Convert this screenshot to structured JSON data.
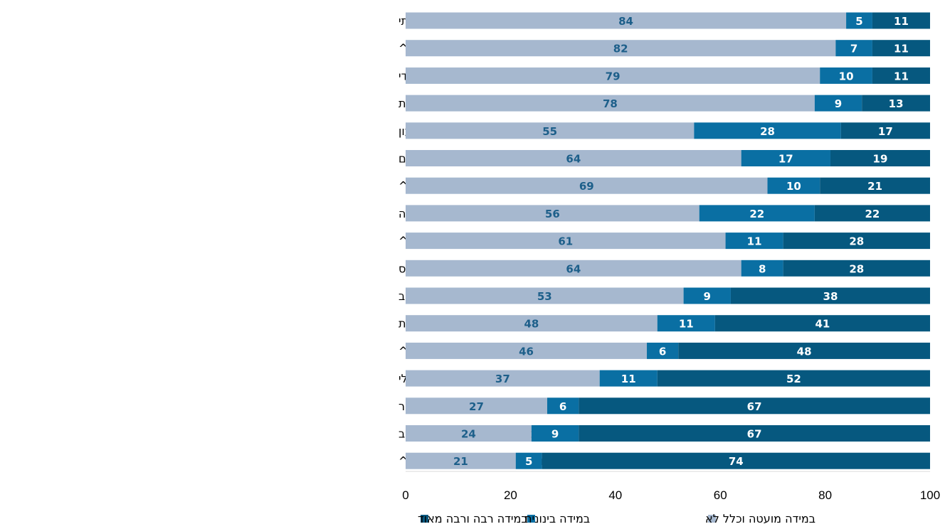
{
  "chart_data": {
    "type": "bar",
    "orientation": "horizontal",
    "stacked": true,
    "categories": [
      "קשה לי למצוא עבודה כי הלבוש שלי מסורתי",
      "האוטובוס ביישוב שלי פועל בשעות שלא מתאימות לעבודה^^",
      "אין לי אמון במעסיק יהודי",
      "קשה לי למצוא עבודה כי אני בדואית",
      "אני לא סומכת על הטיפול שהילדים מקבלים במעון",
      "קשה לי למצוא עבודה שמתאימה לנשים",
      "זמן הנסיעה באוטובוס ארוך מדי בשבילי^^",
      "העברית שלי לא מספיק טובה",
      "המעון שבשכונה שלי יקר מדי^",
      "זה לא מקובל שאני אסע לבד באוטובוס",
      "אין בקרבת הבית שלי אוטובוס שייקח אותי לעבודה מחוץ ליישוב",
      "אין לי הכשרה או השכלה מספיקות",
      "אין בשכונה שלי מעון בשביל הילדים הקטנים שלי^",
      "אין מספיק מקומות עבודה שקרובים לבית שלי",
      "אני יכולה לעבוד רק בשעות הבוקר",
      "איני יכולה לעבוד בשעות הערב",
      "יש לי ילדים קטנים, ואני זו שצריכה לטפל בהם^"
    ],
    "series": [
      {
        "name": "במידה מועטה וכלל לא",
        "color": "#a6b8cf",
        "label_color": "#1d5f8a",
        "values": [
          84,
          82,
          79,
          78,
          55,
          64,
          69,
          56,
          61,
          64,
          53,
          48,
          46,
          37,
          27,
          24,
          21
        ]
      },
      {
        "name": "במידה בינונית",
        "color": "#0a6fa3",
        "label_color": "#ffffff",
        "values": [
          5,
          7,
          10,
          9,
          28,
          17,
          10,
          22,
          11,
          8,
          9,
          11,
          6,
          11,
          6,
          9,
          5
        ]
      },
      {
        "name": "במידה רבה ורבה מאוד",
        "color": "#06587f",
        "label_color": "#ffffff",
        "values": [
          11,
          11,
          11,
          13,
          17,
          19,
          21,
          22,
          28,
          28,
          38,
          41,
          48,
          52,
          67,
          67,
          74
        ]
      }
    ],
    "xlim": [
      0,
      100
    ],
    "xticks": [
      "0",
      "20",
      "40",
      "60",
      "80",
      "100"
    ],
    "grid": false,
    "legend_position": "bottom"
  }
}
